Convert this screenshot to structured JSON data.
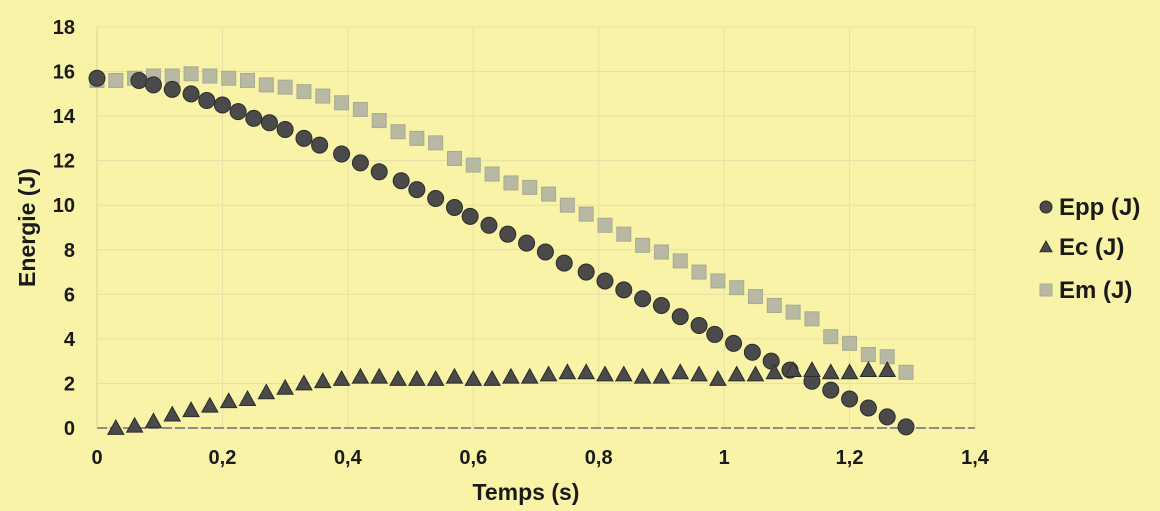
{
  "chart_data": {
    "type": "scatter",
    "title": "",
    "xlabel": "Temps (s)",
    "ylabel": "Energie (J)",
    "xlim": [
      0,
      1.4
    ],
    "ylim": [
      0,
      18
    ],
    "x_ticks": [
      "0",
      "0,2",
      "0,4",
      "0,6",
      "0,8",
      "1",
      "1,2",
      "1,4"
    ],
    "y_ticks": [
      "0",
      "2",
      "4",
      "6",
      "8",
      "10",
      "12",
      "14",
      "16",
      "18"
    ],
    "grid": true,
    "legend_position": "right",
    "series": [
      {
        "name": "Epp (J)",
        "marker": "circle",
        "color": "#4a4a4a",
        "points": [
          [
            0.0,
            15.7
          ],
          [
            0.067,
            15.6
          ],
          [
            0.09,
            15.4
          ],
          [
            0.12,
            15.2
          ],
          [
            0.15,
            15.0
          ],
          [
            0.175,
            14.7
          ],
          [
            0.2,
            14.5
          ],
          [
            0.225,
            14.2
          ],
          [
            0.25,
            13.9
          ],
          [
            0.275,
            13.7
          ],
          [
            0.3,
            13.4
          ],
          [
            0.33,
            13.0
          ],
          [
            0.355,
            12.7
          ],
          [
            0.39,
            12.3
          ],
          [
            0.42,
            11.9
          ],
          [
            0.45,
            11.5
          ],
          [
            0.485,
            11.1
          ],
          [
            0.51,
            10.7
          ],
          [
            0.54,
            10.3
          ],
          [
            0.57,
            9.9
          ],
          [
            0.595,
            9.5
          ],
          [
            0.625,
            9.1
          ],
          [
            0.655,
            8.7
          ],
          [
            0.685,
            8.3
          ],
          [
            0.715,
            7.9
          ],
          [
            0.745,
            7.4
          ],
          [
            0.78,
            7.0
          ],
          [
            0.81,
            6.6
          ],
          [
            0.84,
            6.2
          ],
          [
            0.87,
            5.8
          ],
          [
            0.9,
            5.5
          ],
          [
            0.93,
            5.0
          ],
          [
            0.96,
            4.6
          ],
          [
            0.985,
            4.2
          ],
          [
            1.015,
            3.8
          ],
          [
            1.045,
            3.4
          ],
          [
            1.075,
            3.0
          ],
          [
            1.105,
            2.6
          ],
          [
            1.14,
            2.1
          ],
          [
            1.17,
            1.7
          ],
          [
            1.2,
            1.3
          ],
          [
            1.23,
            0.9
          ],
          [
            1.26,
            0.5
          ],
          [
            1.29,
            0.05
          ]
        ]
      },
      {
        "name": "Ec (J)",
        "marker": "triangle",
        "color": "#4a4a4a",
        "points": [
          [
            0.03,
            0.0
          ],
          [
            0.06,
            0.1
          ],
          [
            0.09,
            0.3
          ],
          [
            0.12,
            0.6
          ],
          [
            0.15,
            0.8
          ],
          [
            0.18,
            1.0
          ],
          [
            0.21,
            1.2
          ],
          [
            0.24,
            1.3
          ],
          [
            0.27,
            1.6
          ],
          [
            0.3,
            1.8
          ],
          [
            0.33,
            2.0
          ],
          [
            0.36,
            2.1
          ],
          [
            0.39,
            2.2
          ],
          [
            0.42,
            2.3
          ],
          [
            0.45,
            2.3
          ],
          [
            0.48,
            2.2
          ],
          [
            0.51,
            2.2
          ],
          [
            0.54,
            2.2
          ],
          [
            0.57,
            2.3
          ],
          [
            0.6,
            2.2
          ],
          [
            0.63,
            2.2
          ],
          [
            0.66,
            2.3
          ],
          [
            0.69,
            2.3
          ],
          [
            0.72,
            2.4
          ],
          [
            0.75,
            2.5
          ],
          [
            0.78,
            2.5
          ],
          [
            0.81,
            2.4
          ],
          [
            0.84,
            2.4
          ],
          [
            0.87,
            2.3
          ],
          [
            0.9,
            2.3
          ],
          [
            0.93,
            2.5
          ],
          [
            0.96,
            2.4
          ],
          [
            0.99,
            2.2
          ],
          [
            1.02,
            2.4
          ],
          [
            1.05,
            2.4
          ],
          [
            1.08,
            2.5
          ],
          [
            1.11,
            2.6
          ],
          [
            1.14,
            2.6
          ],
          [
            1.17,
            2.5
          ],
          [
            1.2,
            2.5
          ],
          [
            1.23,
            2.6
          ],
          [
            1.26,
            2.6
          ]
        ]
      },
      {
        "name": "Em (J)",
        "marker": "square",
        "color": "#b8b9a2",
        "points": [
          [
            0.0,
            15.6
          ],
          [
            0.03,
            15.6
          ],
          [
            0.06,
            15.7
          ],
          [
            0.09,
            15.8
          ],
          [
            0.12,
            15.8
          ],
          [
            0.15,
            15.9
          ],
          [
            0.18,
            15.8
          ],
          [
            0.21,
            15.7
          ],
          [
            0.24,
            15.6
          ],
          [
            0.27,
            15.4
          ],
          [
            0.3,
            15.3
          ],
          [
            0.33,
            15.1
          ],
          [
            0.36,
            14.9
          ],
          [
            0.39,
            14.6
          ],
          [
            0.42,
            14.3
          ],
          [
            0.45,
            13.8
          ],
          [
            0.48,
            13.3
          ],
          [
            0.51,
            13.0
          ],
          [
            0.54,
            12.8
          ],
          [
            0.57,
            12.1
          ],
          [
            0.6,
            11.8
          ],
          [
            0.63,
            11.4
          ],
          [
            0.66,
            11.0
          ],
          [
            0.69,
            10.8
          ],
          [
            0.72,
            10.5
          ],
          [
            0.75,
            10.0
          ],
          [
            0.78,
            9.6
          ],
          [
            0.81,
            9.1
          ],
          [
            0.84,
            8.7
          ],
          [
            0.87,
            8.2
          ],
          [
            0.9,
            7.9
          ],
          [
            0.93,
            7.5
          ],
          [
            0.96,
            7.0
          ],
          [
            0.99,
            6.6
          ],
          [
            1.02,
            6.3
          ],
          [
            1.05,
            5.9
          ],
          [
            1.08,
            5.5
          ],
          [
            1.11,
            5.2
          ],
          [
            1.14,
            4.9
          ],
          [
            1.17,
            4.1
          ],
          [
            1.2,
            3.8
          ],
          [
            1.23,
            3.3
          ],
          [
            1.26,
            3.2
          ],
          [
            1.29,
            2.5
          ]
        ]
      }
    ]
  }
}
